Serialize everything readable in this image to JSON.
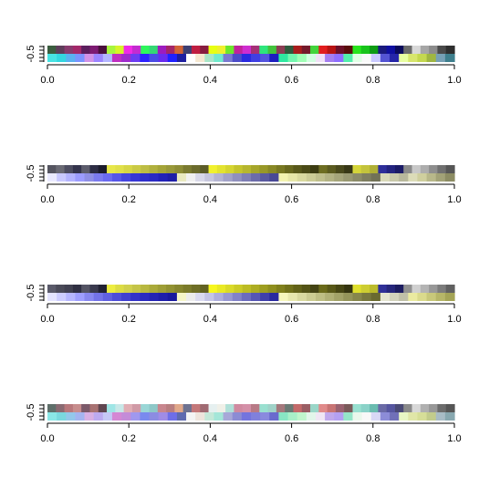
{
  "chart_data": [
    {
      "type": "heatmap",
      "xlim": [
        0.0,
        1.0
      ],
      "ylim": [
        0.0,
        1.0
      ],
      "x_ticks": [
        "0.0",
        "0.2",
        "0.4",
        "0.6",
        "0.8",
        "1.0"
      ],
      "y_ticks": [
        "-0.5"
      ],
      "grid": false,
      "rows": [
        [
          "#3b5d3f",
          "#5e3d5a",
          "#883a6e",
          "#a3286a",
          "#5c1e5e",
          "#7d1a72",
          "#4a0f3d",
          "#a7f53e",
          "#d8f428",
          "#f12ae6",
          "#c42bd0",
          "#2ef65c",
          "#34d874",
          "#9d1cbf",
          "#a42668",
          "#d26335",
          "#3e3f72",
          "#bf1e41",
          "#871c40",
          "#e8ff12",
          "#f0f02d",
          "#6be72d",
          "#c1239b",
          "#cf2dd0",
          "#a53077",
          "#2ee67c",
          "#42c33c",
          "#8c3d54",
          "#2e5b3d",
          "#a91d1c",
          "#751a2b",
          "#42d43b",
          "#e11d1d",
          "#b81313",
          "#6c1029",
          "#5a0c0c",
          "#28e41e",
          "#17c41a",
          "#0e9c14",
          "#1a1a7e",
          "#0f0fa0",
          "#0a0a5a",
          "#6a6a6a",
          "#d8d8d8",
          "#a6a6a6",
          "#8c8c8c",
          "#4a4a4a",
          "#2e2e2e"
        ],
        [
          "#47e3e3",
          "#33d6df",
          "#5ab1f0",
          "#7a93ff",
          "#d292e6",
          "#9b84ff",
          "#b3b5ff",
          "#c02fc0",
          "#9f2ccd",
          "#6c3cf3",
          "#2d21ff",
          "#4b4be6",
          "#6a2bf0",
          "#2020ff",
          "#1e1ea0",
          "#ffffff",
          "#f6e8d0",
          "#a8e6c8",
          "#70eacd",
          "#7a7ad0",
          "#4c4cc9",
          "#2a2ae0",
          "#3f3fe3",
          "#5454df",
          "#1d1dc0",
          "#2ee8a0",
          "#73f7ae",
          "#a0ffb5",
          "#d1ffe0",
          "#f1e0f7",
          "#a47ef0",
          "#8e6eff",
          "#52f0ac",
          "#e1ffe6",
          "#f9f9f9",
          "#c9c9ff",
          "#5454d4",
          "#2525a8",
          "#e8ffa0",
          "#d7e66c",
          "#c4d84f",
          "#9fb641",
          "#76a0b5",
          "#3e7f8d"
        ]
      ]
    },
    {
      "type": "heatmap",
      "xlim": [
        0.0,
        1.0
      ],
      "ylim": [
        0.0,
        1.0
      ],
      "x_ticks": [
        "0.0",
        "0.2",
        "0.4",
        "0.6",
        "0.8",
        "1.0"
      ],
      "y_ticks": [
        "-0.5"
      ],
      "grid": false,
      "rows": [
        [
          "#555560",
          "#6a6a74",
          "#4d4d60",
          "#34344c",
          "#5c5c6c",
          "#2d2d45",
          "#1c1c2c",
          "#e7e74a",
          "#e0e04a",
          "#d6d646",
          "#caca45",
          "#bdbd44",
          "#b0b03e",
          "#a4a438",
          "#99993a",
          "#8d8d36",
          "#7a7a30",
          "#6b6b2c",
          "#5c5c28",
          "#f1f12e",
          "#e3e330",
          "#d5d530",
          "#c4c42c",
          "#b6b62e",
          "#a6a62a",
          "#989828",
          "#888826",
          "#787822",
          "#68681e",
          "#58581a",
          "#4a4a16",
          "#3c3c12",
          "#6d6d22",
          "#5b5b20",
          "#49491c",
          "#373716",
          "#d4d43a",
          "#c3c33c",
          "#b0b036",
          "#2e2e9a",
          "#232380",
          "#1a1a66",
          "#8a8a8a",
          "#c8c8c8",
          "#adadad",
          "#8e8e8e",
          "#707070",
          "#565656"
        ],
        [
          "#eaeaff",
          "#c9c9ff",
          "#b3b3ff",
          "#9c9cff",
          "#8f8fe6",
          "#7b7bef",
          "#6a6af0",
          "#5656e8",
          "#4545e0",
          "#3838d6",
          "#2f2fcc",
          "#2a2ac4",
          "#2222b8",
          "#1e1ea8",
          "#e9e9c0",
          "#f0f0f0",
          "#d8d8e8",
          "#c6c6dd",
          "#b4b4d2",
          "#a2a2c8",
          "#9090be",
          "#7e7eb4",
          "#6c6caa",
          "#5a5aa0",
          "#484896",
          "#f3f3b0",
          "#e6e6a8",
          "#d9d99f",
          "#cccc96",
          "#bfbf8d",
          "#b2b284",
          "#a5a57b",
          "#989872",
          "#8b8b69",
          "#7e7e60",
          "#717157",
          "#d8d8b8",
          "#c8c8aa",
          "#b8b89c",
          "#dcdcb8",
          "#cfcf9e",
          "#b8b88a",
          "#a2a277",
          "#8c8c63"
        ]
      ]
    },
    {
      "type": "heatmap",
      "xlim": [
        0.0,
        1.0
      ],
      "ylim": [
        0.0,
        1.0
      ],
      "x_ticks": [
        "0.0",
        "0.2",
        "0.4",
        "0.6",
        "0.8",
        "1.0"
      ],
      "y_ticks": [
        "-0.5"
      ],
      "grid": false,
      "rows": [
        [
          "#5a5a6a",
          "#4a4a58",
          "#404050",
          "#2f2f42",
          "#545464",
          "#3a3a4e",
          "#222233",
          "#eded40",
          "#dcdc44",
          "#d0d04c",
          "#c4c448",
          "#b8b840",
          "#aaaa3a",
          "#9e9e36",
          "#929232",
          "#86862e",
          "#7a7a2a",
          "#6e6e26",
          "#626222",
          "#f7f71e",
          "#e9e924",
          "#dada28",
          "#cbcb26",
          "#bcbc24",
          "#adad22",
          "#9e9e20",
          "#8f8f1e",
          "#80801c",
          "#71711a",
          "#626218",
          "#535316",
          "#444414",
          "#6a6a1a",
          "#585818",
          "#464614",
          "#343410",
          "#dede2e",
          "#cdcd32",
          "#bcbc2c",
          "#303098",
          "#26267c",
          "#1c1c60",
          "#909090",
          "#d0d0d0",
          "#b4b4b4",
          "#989898",
          "#7c7c7c",
          "#606060"
        ],
        [
          "#e4e4ff",
          "#cdcdff",
          "#b6b6ff",
          "#9f9fff",
          "#8888f0",
          "#7373e8",
          "#6060e0",
          "#4e4ed8",
          "#4040d0",
          "#3434c8",
          "#2b2bbf",
          "#2424b5",
          "#1e1eaa",
          "#18189e",
          "#f5f5c8",
          "#ececec",
          "#dadaf0",
          "#c4c4e6",
          "#aeaedc",
          "#9898d2",
          "#8282c8",
          "#6c6cbe",
          "#5656b4",
          "#4040aa",
          "#2a2aa0",
          "#f6f6bc",
          "#e8e8ae",
          "#dadaa0",
          "#cccc92",
          "#bebe84",
          "#b0b076",
          "#a2a268",
          "#94945a",
          "#86864c",
          "#78783e",
          "#6a6a30",
          "#e4e4d0",
          "#d2d2bc",
          "#c0c0a8",
          "#eaeaa0",
          "#dada8c",
          "#c8c87a",
          "#b6b668",
          "#a4a456"
        ]
      ]
    },
    {
      "type": "heatmap",
      "xlim": [
        0.0,
        1.0
      ],
      "ylim": [
        0.0,
        1.0
      ],
      "x_ticks": [
        "0.0",
        "0.2",
        "0.4",
        "0.6",
        "0.8",
        "1.0"
      ],
      "y_ticks": [
        "-0.5"
      ],
      "grid": false,
      "rows": [
        [
          "#5f6f6a",
          "#8a6a72",
          "#b8787c",
          "#c78d8d",
          "#7c5a6a",
          "#a87272",
          "#604650",
          "#9fe6e6",
          "#c8e8e8",
          "#e0aeb4",
          "#d09aa6",
          "#9ad6d6",
          "#8ec8c8",
          "#c8868e",
          "#b87e80",
          "#e0a88a",
          "#6e7290",
          "#c4787a",
          "#a06a72",
          "#e6f0f0",
          "#f0f0e8",
          "#b0e0d8",
          "#d08aa0",
          "#d490a8",
          "#b87a86",
          "#9ae0d0",
          "#a0d2c8",
          "#a4787c",
          "#6a7a74",
          "#c46a6a",
          "#9a5e64",
          "#9ad6c8",
          "#e08a8a",
          "#c87474",
          "#9a6270",
          "#7a5a5a",
          "#98e0d0",
          "#8ad2c8",
          "#6abcb0",
          "#6a6aa6",
          "#5656a0",
          "#4a4a76",
          "#8a8a8a",
          "#d8d8d8",
          "#b0b0b0",
          "#989898",
          "#6c6c6c",
          "#565656"
        ],
        [
          "#8ae6e6",
          "#7ad8de",
          "#94c8ea",
          "#a4b4f0",
          "#d8b0e4",
          "#bcaaf0",
          "#c6c8f6",
          "#d488d4",
          "#c48cd8",
          "#a098ee",
          "#7a8aee",
          "#8c8ce2",
          "#a08ce6",
          "#6e6ee8",
          "#5e6ab0",
          "#f4f4f4",
          "#eee4dc",
          "#c4e8d8",
          "#a4e6d8",
          "#a8a8d8",
          "#8c8cd4",
          "#7474de",
          "#8080dc",
          "#8a8ade",
          "#6a6ace",
          "#88e6c4",
          "#a8f0c8",
          "#c0f6cc",
          "#e2f6ea",
          "#f0e6f4",
          "#c0a8ec",
          "#b4a0f2",
          "#94e6c8",
          "#eaf8ec",
          "#f8f8f8",
          "#d8d8f6",
          "#8c8cd8",
          "#7070b8",
          "#e8f6c4",
          "#e0e6a8",
          "#d6de98",
          "#c2cc8c",
          "#a8bcc6",
          "#88a8b0"
        ]
      ]
    }
  ]
}
